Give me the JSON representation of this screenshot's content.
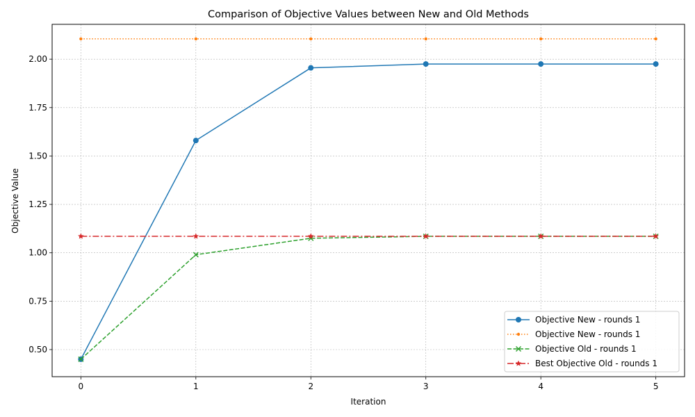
{
  "chart_data": {
    "type": "line",
    "title": "Comparison of Objective Values between New and Old Methods",
    "xlabel": "Iteration",
    "ylabel": "Objective Value",
    "x": [
      0,
      1,
      2,
      3,
      4,
      5
    ],
    "xlim": [
      -0.25,
      5.25
    ],
    "ylim": [
      0.36,
      2.18
    ],
    "xticks": [
      0,
      1,
      2,
      3,
      4,
      5
    ],
    "yticks": [
      0.5,
      0.75,
      1.0,
      1.25,
      1.5,
      1.75,
      2.0
    ],
    "ytick_labels": [
      "0.50",
      "0.75",
      "1.00",
      "1.25",
      "1.50",
      "1.75",
      "2.00"
    ],
    "grid": true,
    "legend_position": "lower-right",
    "series": [
      {
        "name": "Objective New - rounds 1",
        "values": [
          0.45,
          1.58,
          1.955,
          1.975,
          1.975,
          1.975
        ],
        "color": "#1f77b4",
        "dash": "solid",
        "marker": "circle"
      },
      {
        "name": "Objective New - rounds 1",
        "values": [
          2.105,
          2.105,
          2.105,
          2.105,
          2.105,
          2.105
        ],
        "color": "#ff7f0e",
        "dash": "dotted",
        "marker": "point"
      },
      {
        "name": "Objective Old - rounds 1",
        "values": [
          0.45,
          0.99,
          1.075,
          1.085,
          1.085,
          1.085
        ],
        "color": "#2ca02c",
        "dash": "dashed",
        "marker": "x"
      },
      {
        "name": "Best Objective Old - rounds 1",
        "values": [
          1.085,
          1.085,
          1.085,
          1.085,
          1.085,
          1.085
        ],
        "color": "#d62728",
        "dash": "dashdot",
        "marker": "star"
      }
    ]
  }
}
